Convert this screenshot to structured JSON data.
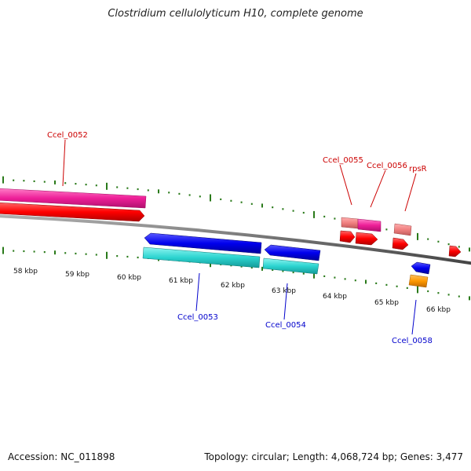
{
  "header": {
    "title": "Clostridium cellulolyticum H10, complete genome"
  },
  "footer": {
    "accession": "Accession: NC_011898",
    "summary": "Topology: circular; Length: 4,068,724 bp; Genes: 3,477"
  },
  "axis": {
    "tick_labels": [
      "58 kbp",
      "59 kbp",
      "60 kbp",
      "61 kbp",
      "62 kbp",
      "63 kbp",
      "64 kbp",
      "65 kbp",
      "66 kbp"
    ]
  },
  "colors": {
    "forward_label": "#cc0000",
    "reverse_label": "#0000cc",
    "tick": "#2a7a1a",
    "backbone": "#777777"
  },
  "genes": {
    "labels_forward": [
      "Ccel_0052",
      "Ccel_0055",
      "Ccel_0056",
      "rpsR"
    ],
    "labels_reverse": [
      "Ccel_0053",
      "Ccel_0054",
      "Ccel_0058"
    ]
  }
}
